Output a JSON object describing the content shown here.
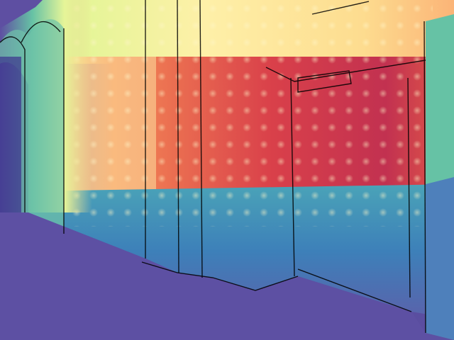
{
  "image": {
    "kind": "depth-map visualization of an arcaded interior wall",
    "colormap": "spectral",
    "colors": {
      "near": "#5e4fa2",
      "mid_near": "#3288bd",
      "mid": "#66c2a5",
      "mid_far": "#e6f598",
      "far_light": "#fee08b",
      "far": "#f46d43",
      "farthest": "#9e0142",
      "edge": "#000000"
    }
  }
}
